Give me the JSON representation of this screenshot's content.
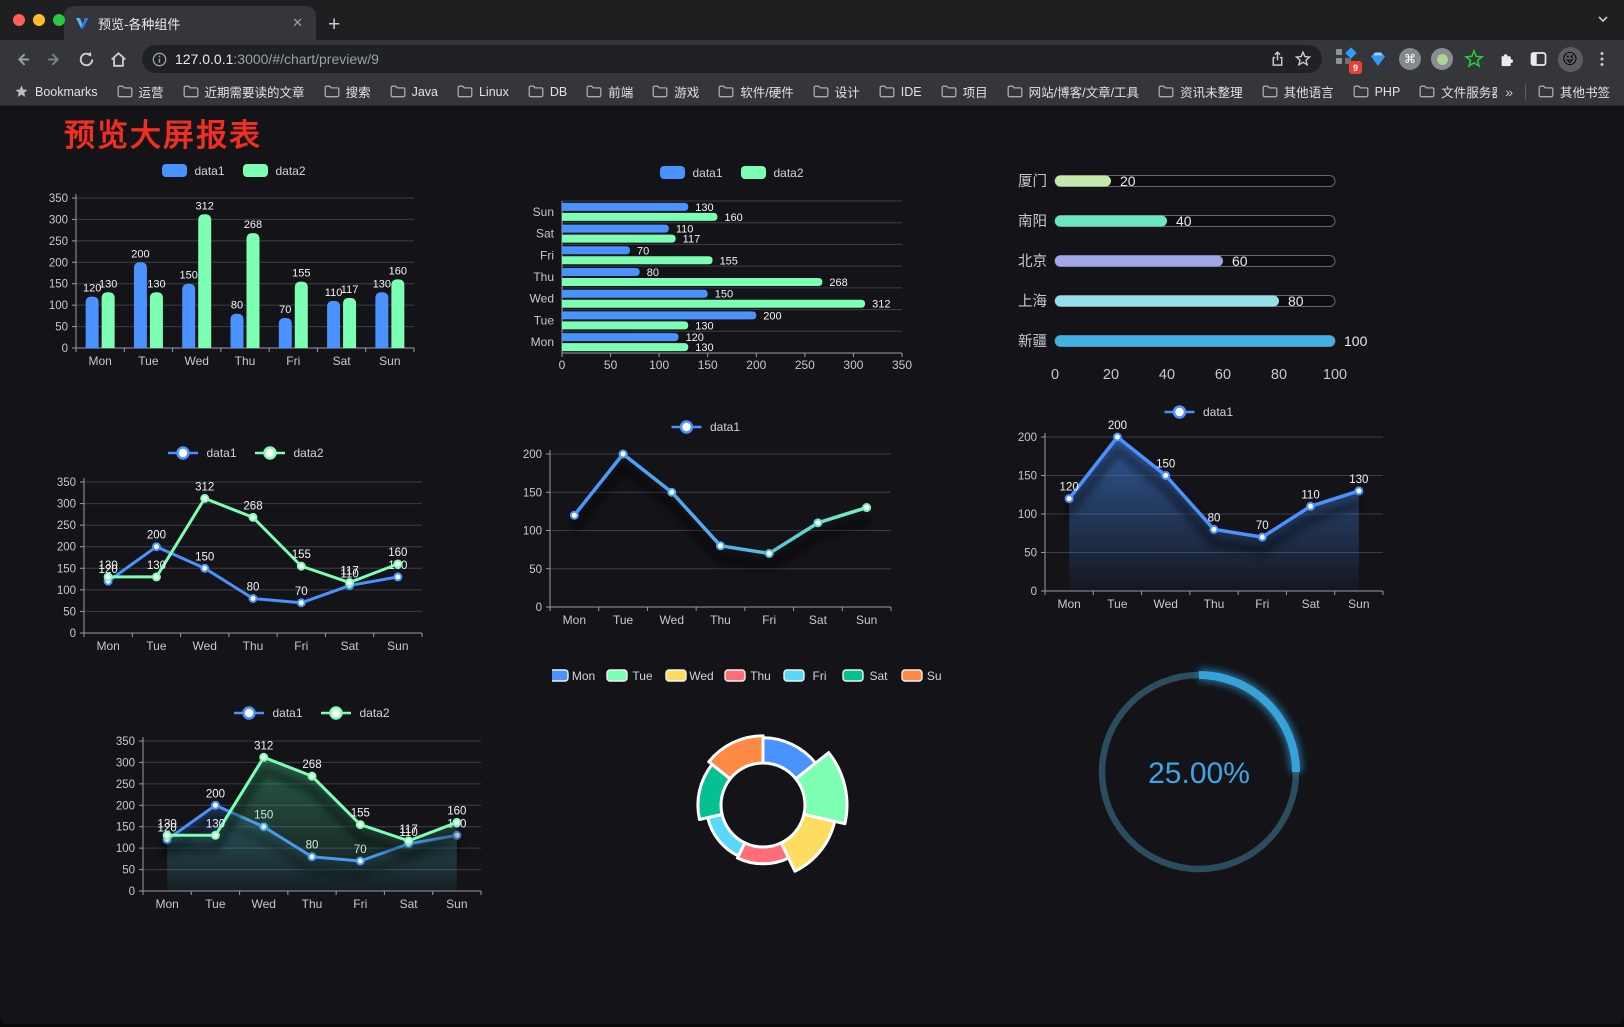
{
  "browser": {
    "tab": {
      "title": "预览-各种组件"
    },
    "icons": {
      "close": "✕",
      "plus": "+",
      "overflow": "»",
      "command": "⌘",
      "badge": "9",
      "emoji": "😜"
    },
    "url": {
      "host": "127.0.0.1",
      "path": ":3000/#/chart/preview/9"
    },
    "bookmarks": {
      "label": "Bookmarks",
      "items": [
        "运营",
        "近期需要读的文章",
        "搜索",
        "Java",
        "Linux",
        "DB",
        "前端",
        "游戏",
        "软件/硬件",
        "设计",
        "IDE",
        "项目",
        "网站/博客/文章/工具",
        "资讯未整理",
        "其他语言",
        "PHP",
        "文件服务器"
      ],
      "other": "其他书签"
    },
    "traffic_light_colors": {
      "red": "#ff5f57",
      "yellow": "#febc2e",
      "green": "#28c840"
    }
  },
  "page": {
    "title": "预览大屏报表"
  },
  "colors": {
    "title_red": "#ee2f21",
    "accent_blue": "#4992ff",
    "accent_green": "#7cffb2",
    "gauge_blue": "#37a2da"
  },
  "chart_data": [
    {
      "id": "bar-grouped",
      "type": "bar",
      "categories": [
        "Mon",
        "Tue",
        "Wed",
        "Thu",
        "Fri",
        "Sat",
        "Sun"
      ],
      "series": [
        {
          "name": "data1",
          "color": "#4992ff",
          "values": [
            120,
            200,
            150,
            80,
            70,
            110,
            130
          ]
        },
        {
          "name": "data2",
          "color": "#7cffb2",
          "values": [
            130,
            130,
            312,
            268,
            155,
            117,
            160
          ]
        }
      ],
      "ylim": [
        0,
        350
      ],
      "ytick": 50,
      "legend_position": "top",
      "grid": true
    },
    {
      "id": "hbar-grouped",
      "type": "bar",
      "orientation": "horizontal",
      "categories": [
        "Mon",
        "Tue",
        "Wed",
        "Thu",
        "Fri",
        "Sat",
        "Sun"
      ],
      "series": [
        {
          "name": "data1",
          "color": "#4992ff",
          "values": [
            120,
            200,
            150,
            80,
            70,
            110,
            130
          ]
        },
        {
          "name": "data2",
          "color": "#7cffb2",
          "values": [
            130,
            130,
            312,
            268,
            155,
            117,
            160
          ]
        }
      ],
      "xlim": [
        0,
        350
      ],
      "xtick": 50,
      "legend_position": "top",
      "grid": true
    },
    {
      "id": "progress",
      "type": "bar",
      "orientation": "progress",
      "categories": [
        "厦门",
        "南阳",
        "北京",
        "上海",
        "新疆"
      ],
      "values": [
        20,
        40,
        60,
        80,
        100
      ],
      "colors": [
        "#c4ebad",
        "#6be6c1",
        "#a0a7e6",
        "#96dee8",
        "#3fb1e3"
      ],
      "xlim": [
        0,
        100
      ],
      "xticks": [
        0,
        20,
        40,
        60,
        80,
        100
      ]
    },
    {
      "id": "line-dual",
      "type": "line",
      "categories": [
        "Mon",
        "Tue",
        "Wed",
        "Thu",
        "Fri",
        "Sat",
        "Sun"
      ],
      "series": [
        {
          "name": "data1",
          "color": "#4992ff",
          "values": [
            120,
            200,
            150,
            80,
            70,
            110,
            130
          ]
        },
        {
          "name": "data2",
          "color": "#7cffb2",
          "values": [
            130,
            130,
            312,
            268,
            155,
            117,
            160
          ]
        }
      ],
      "ylim": [
        0,
        350
      ],
      "ytick": 50,
      "point_labels": true
    },
    {
      "id": "line-gradient",
      "type": "line",
      "categories": [
        "Mon",
        "Tue",
        "Wed",
        "Thu",
        "Fri",
        "Sat",
        "Sun"
      ],
      "series": [
        {
          "name": "data1",
          "gradient": [
            "#4992ff",
            "#7cffb2"
          ],
          "values": [
            120,
            200,
            150,
            80,
            70,
            110,
            130
          ]
        }
      ],
      "ylim": [
        0,
        200
      ],
      "ytick": 50,
      "point_labels": false
    },
    {
      "id": "area-blue",
      "type": "area",
      "categories": [
        "Mon",
        "Tue",
        "Wed",
        "Thu",
        "Fri",
        "Sat",
        "Sun"
      ],
      "series": [
        {
          "name": "data1",
          "color": "#4992ff",
          "values": [
            120,
            200,
            150,
            80,
            70,
            110,
            130
          ]
        }
      ],
      "ylim": [
        0,
        200
      ],
      "ytick": 50,
      "point_labels": true
    },
    {
      "id": "area-dual",
      "type": "area",
      "categories": [
        "Mon",
        "Tue",
        "Wed",
        "Thu",
        "Fri",
        "Sat",
        "Sun"
      ],
      "series": [
        {
          "name": "data1",
          "color": "#4992ff",
          "values": [
            120,
            200,
            150,
            80,
            70,
            110,
            130
          ]
        },
        {
          "name": "data2",
          "color": "#7cffb2",
          "values": [
            130,
            130,
            312,
            268,
            155,
            117,
            160
          ]
        }
      ],
      "ylim": [
        0,
        350
      ],
      "ytick": 50,
      "point_labels": true
    },
    {
      "id": "rose-donut",
      "type": "pie",
      "rose": true,
      "categories": [
        "Mon",
        "Tue",
        "Wed",
        "Thu",
        "Fri",
        "Sat",
        "Sun"
      ],
      "values": [
        120,
        200,
        150,
        80,
        70,
        110,
        130
      ],
      "colors": [
        "#4992ff",
        "#7cffb2",
        "#fddd60",
        "#ff6e76",
        "#58d9f9",
        "#05c091",
        "#ff8a45"
      ]
    },
    {
      "id": "gauge",
      "type": "gauge",
      "value": 25,
      "max": 100,
      "label": "25.00%",
      "color": "#37a2da",
      "track_color": "#2b4d5e"
    }
  ]
}
